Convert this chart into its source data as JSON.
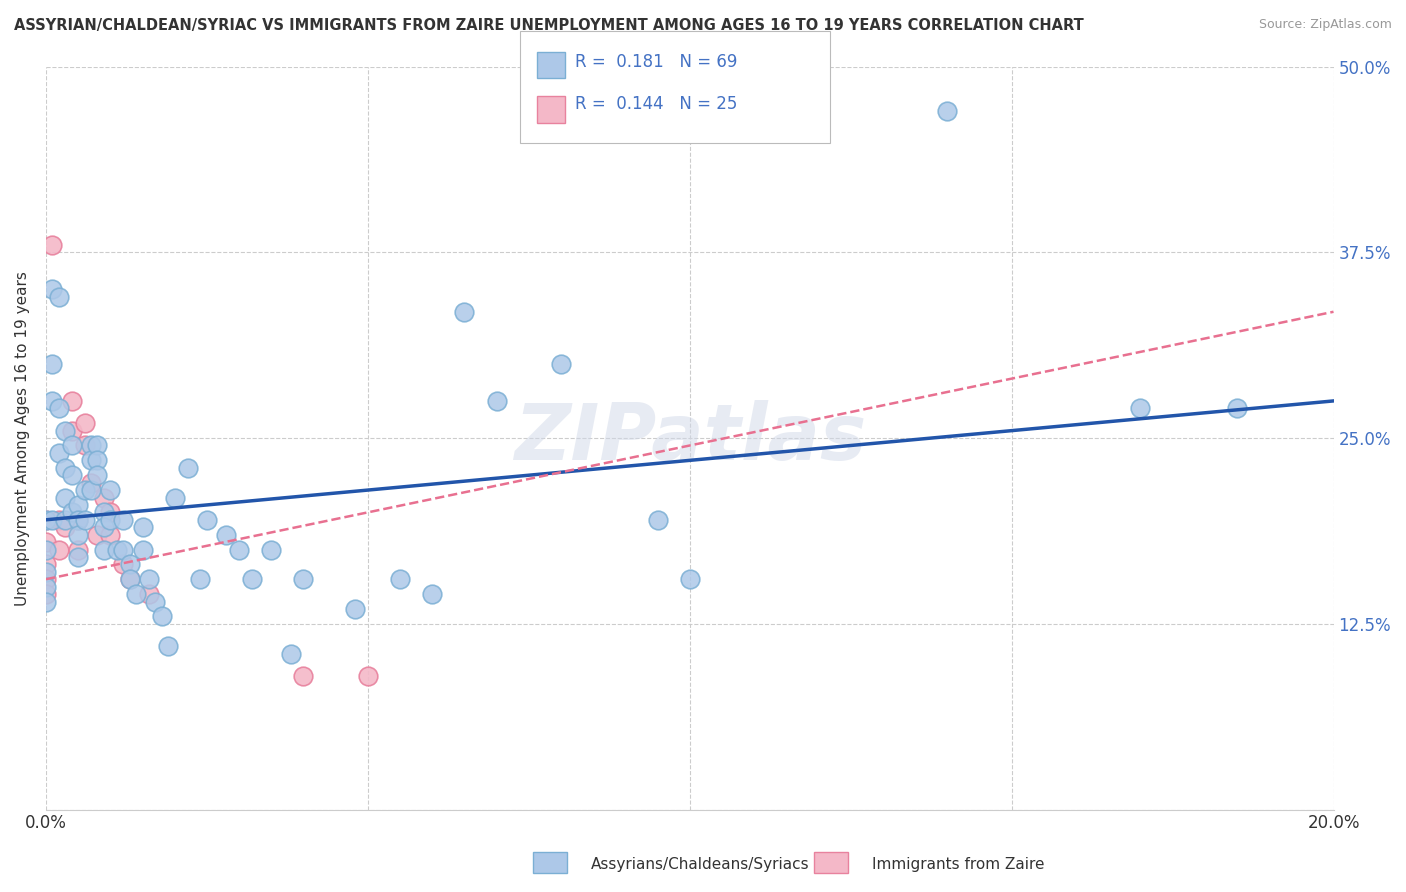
{
  "title": "ASSYRIAN/CHALDEAN/SYRIAC VS IMMIGRANTS FROM ZAIRE UNEMPLOYMENT AMONG AGES 16 TO 19 YEARS CORRELATION CHART",
  "source": "Source: ZipAtlas.com",
  "ylabel": "Unemployment Among Ages 16 to 19 years",
  "xlim": [
    0.0,
    0.2
  ],
  "ylim": [
    0.0,
    0.5
  ],
  "xticks": [
    0.0,
    0.05,
    0.1,
    0.15,
    0.2
  ],
  "xticklabels": [
    "0.0%",
    "",
    "",
    "",
    "20.0%"
  ],
  "yticks": [
    0.0,
    0.125,
    0.25,
    0.375,
    0.5
  ],
  "yticklabels": [
    "",
    "12.5%",
    "25.0%",
    "37.5%",
    "50.0%"
  ],
  "blue_R": 0.181,
  "blue_N": 69,
  "pink_R": 0.144,
  "pink_N": 25,
  "blue_label": "Assyrians/Chaldeans/Syriacs",
  "pink_label": "Immigrants from Zaire",
  "blue_color": "#adc8e8",
  "blue_edge": "#7bafd4",
  "pink_color": "#f4b8c8",
  "pink_edge": "#e8829e",
  "blue_line_color": "#2255aa",
  "pink_line_color": "#e87090",
  "background_color": "#ffffff",
  "grid_color": "#cccccc",
  "title_color": "#333333",
  "watermark": "ZIPatlas",
  "blue_line_x": [
    0.0,
    0.2
  ],
  "blue_line_y": [
    0.195,
    0.275
  ],
  "pink_line_x": [
    0.0,
    0.2
  ],
  "pink_line_y": [
    0.155,
    0.335
  ],
  "blue_x": [
    0.0,
    0.0,
    0.0,
    0.0,
    0.0,
    0.001,
    0.001,
    0.001,
    0.001,
    0.002,
    0.002,
    0.002,
    0.003,
    0.003,
    0.003,
    0.003,
    0.004,
    0.004,
    0.004,
    0.005,
    0.005,
    0.005,
    0.005,
    0.006,
    0.006,
    0.007,
    0.007,
    0.007,
    0.008,
    0.008,
    0.008,
    0.009,
    0.009,
    0.009,
    0.01,
    0.01,
    0.011,
    0.012,
    0.012,
    0.013,
    0.013,
    0.014,
    0.015,
    0.015,
    0.016,
    0.017,
    0.018,
    0.019,
    0.02,
    0.022,
    0.024,
    0.025,
    0.028,
    0.03,
    0.032,
    0.035,
    0.038,
    0.04,
    0.048,
    0.055,
    0.06,
    0.065,
    0.07,
    0.08,
    0.095,
    0.1,
    0.14,
    0.17,
    0.185
  ],
  "blue_y": [
    0.195,
    0.175,
    0.16,
    0.15,
    0.14,
    0.35,
    0.3,
    0.275,
    0.195,
    0.345,
    0.27,
    0.24,
    0.255,
    0.23,
    0.21,
    0.195,
    0.245,
    0.225,
    0.2,
    0.205,
    0.195,
    0.185,
    0.17,
    0.215,
    0.195,
    0.245,
    0.235,
    0.215,
    0.245,
    0.235,
    0.225,
    0.2,
    0.19,
    0.175,
    0.215,
    0.195,
    0.175,
    0.195,
    0.175,
    0.165,
    0.155,
    0.145,
    0.19,
    0.175,
    0.155,
    0.14,
    0.13,
    0.11,
    0.21,
    0.23,
    0.155,
    0.195,
    0.185,
    0.175,
    0.155,
    0.175,
    0.105,
    0.155,
    0.135,
    0.155,
    0.145,
    0.335,
    0.275,
    0.3,
    0.195,
    0.155,
    0.47,
    0.27,
    0.27
  ],
  "pink_x": [
    0.0,
    0.0,
    0.0,
    0.0,
    0.0,
    0.001,
    0.002,
    0.002,
    0.003,
    0.004,
    0.004,
    0.005,
    0.005,
    0.006,
    0.006,
    0.007,
    0.008,
    0.009,
    0.01,
    0.01,
    0.012,
    0.013,
    0.016,
    0.04,
    0.05
  ],
  "pink_y": [
    0.195,
    0.18,
    0.165,
    0.155,
    0.145,
    0.38,
    0.195,
    0.175,
    0.19,
    0.275,
    0.255,
    0.195,
    0.175,
    0.26,
    0.245,
    0.22,
    0.185,
    0.21,
    0.2,
    0.185,
    0.165,
    0.155,
    0.145,
    0.09,
    0.09
  ]
}
